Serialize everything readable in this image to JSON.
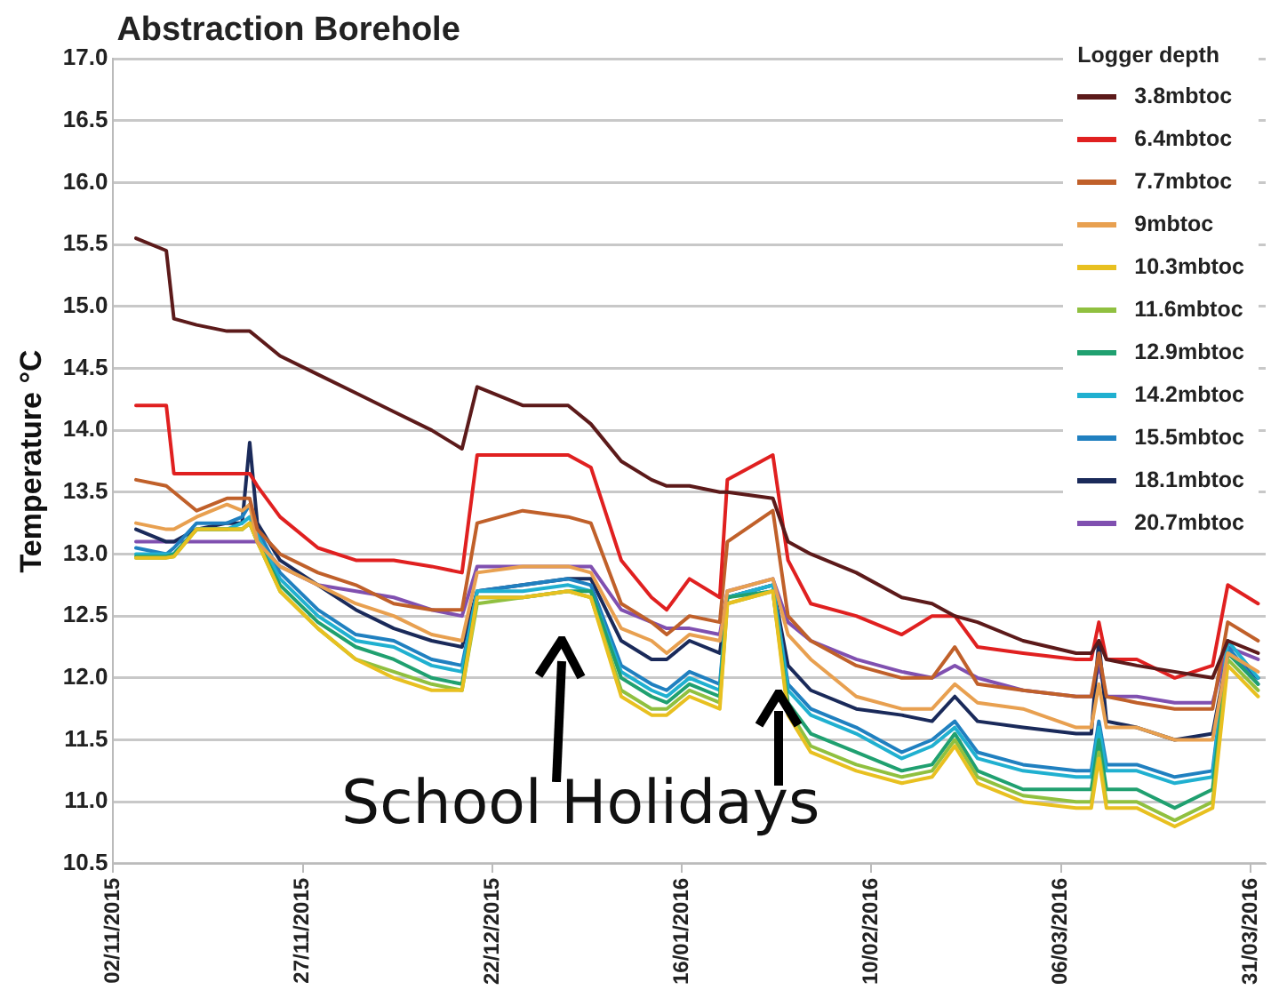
{
  "chart_data": {
    "type": "line",
    "title": "Abstraction Borehole",
    "ylabel": "Temperature °C",
    "legend_title": "Logger depth",
    "legend": "top right",
    "grid": "y",
    "marker": "none",
    "line_style": "solid",
    "annotations": [
      "School Holidays"
    ],
    "xlim": [
      "2015-11-02",
      "2016-04-02"
    ],
    "xticks": [
      {
        "value": "2015-11-02",
        "label": "02/11/2015"
      },
      {
        "value": "2015-11-27",
        "label": "27/11/2015"
      },
      {
        "value": "2015-12-22",
        "label": "22/12/2015"
      },
      {
        "value": "2016-01-16",
        "label": "16/01/2016"
      },
      {
        "value": "2016-02-10",
        "label": "10/02/2016"
      },
      {
        "value": "2016-03-06",
        "label": "06/03/2016"
      },
      {
        "value": "2016-03-31",
        "label": "31/03/2016"
      }
    ],
    "ylim": [
      10.5,
      17.0
    ],
    "yticks": [
      {
        "value": 10.5,
        "label": "10.5"
      },
      {
        "value": 11,
        "label": "11.0"
      },
      {
        "value": 11.5,
        "label": "11.5"
      },
      {
        "value": 12,
        "label": "12.0"
      },
      {
        "value": 12.5,
        "label": "12.5"
      },
      {
        "value": 13,
        "label": "13.0"
      },
      {
        "value": 13.5,
        "label": "13.5"
      },
      {
        "value": 14,
        "label": "14.0"
      },
      {
        "value": 14.5,
        "label": "14.5"
      },
      {
        "value": 15,
        "label": "15.0"
      },
      {
        "value": 15.5,
        "label": "15.5"
      },
      {
        "value": 16,
        "label": "16.0"
      },
      {
        "value": 16.5,
        "label": "16.5"
      },
      {
        "value": 17,
        "label": "17.0"
      }
    ],
    "x": [
      "2015-11-05",
      "2015-11-09",
      "2015-11-10",
      "2015-11-13",
      "2015-11-17",
      "2015-11-19",
      "2015-11-20",
      "2015-11-21",
      "2015-11-24",
      "2015-11-29",
      "2015-12-04",
      "2015-12-09",
      "2015-12-14",
      "2015-12-18",
      "2015-12-20",
      "2015-12-26",
      "2016-01-01",
      "2016-01-04",
      "2016-01-08",
      "2016-01-12",
      "2016-01-14",
      "2016-01-17",
      "2016-01-21",
      "2016-01-22",
      "2016-01-28",
      "2016-01-30",
      "2016-02-02",
      "2016-02-08",
      "2016-02-14",
      "2016-02-18",
      "2016-02-21",
      "2016-02-24",
      "2016-03-01",
      "2016-03-08",
      "2016-03-10",
      "2016-03-11",
      "2016-03-12",
      "2016-03-16",
      "2016-03-21",
      "2016-03-26",
      "2016-03-28",
      "2016-04-01"
    ],
    "series": [
      {
        "name": "3.8mbtoc",
        "color": "#5c1a1a",
        "values": [
          15.55,
          15.45,
          14.9,
          14.85,
          14.8,
          14.8,
          14.8,
          14.75,
          14.6,
          14.45,
          14.3,
          14.15,
          14.0,
          13.85,
          14.35,
          14.2,
          14.2,
          14.05,
          13.75,
          13.6,
          13.55,
          13.55,
          13.5,
          13.5,
          13.45,
          13.1,
          13.0,
          12.85,
          12.65,
          12.6,
          12.5,
          12.45,
          12.3,
          12.2,
          12.2,
          12.3,
          12.15,
          12.1,
          12.05,
          12.0,
          12.3,
          12.2
        ]
      },
      {
        "name": "6.4mbtoc",
        "color": "#e02020",
        "values": [
          14.2,
          14.2,
          13.65,
          13.65,
          13.65,
          13.65,
          13.65,
          13.55,
          13.3,
          13.05,
          12.95,
          12.95,
          12.9,
          12.85,
          13.8,
          13.8,
          13.8,
          13.7,
          12.95,
          12.65,
          12.55,
          12.8,
          12.65,
          13.6,
          13.8,
          12.95,
          12.6,
          12.5,
          12.35,
          12.5,
          12.5,
          12.25,
          12.2,
          12.15,
          12.15,
          12.45,
          12.15,
          12.15,
          12.0,
          12.1,
          12.75,
          12.6
        ]
      },
      {
        "name": "7.7mbtoc",
        "color": "#c0602a",
        "values": [
          13.6,
          13.55,
          13.5,
          13.35,
          13.45,
          13.45,
          13.45,
          13.2,
          13.0,
          12.85,
          12.75,
          12.6,
          12.55,
          12.55,
          13.25,
          13.35,
          13.3,
          13.25,
          12.6,
          12.45,
          12.35,
          12.5,
          12.45,
          13.1,
          13.35,
          12.5,
          12.3,
          12.1,
          12.0,
          12.0,
          12.25,
          11.95,
          11.9,
          11.85,
          11.85,
          12.2,
          11.85,
          11.8,
          11.75,
          11.75,
          12.45,
          12.3
        ]
      },
      {
        "name": "9mbtoc",
        "color": "#e8a050",
        "values": [
          13.25,
          13.2,
          13.2,
          13.3,
          13.4,
          13.35,
          13.4,
          13.1,
          12.9,
          12.75,
          12.6,
          12.5,
          12.35,
          12.3,
          12.85,
          12.9,
          12.9,
          12.85,
          12.4,
          12.3,
          12.2,
          12.35,
          12.3,
          12.7,
          12.8,
          12.35,
          12.15,
          11.85,
          11.75,
          11.75,
          11.95,
          11.8,
          11.75,
          11.6,
          11.6,
          11.95,
          11.6,
          11.6,
          11.5,
          11.5,
          12.2,
          12.05
        ]
      },
      {
        "name": "10.3mbtoc",
        "color": "#e8c020",
        "values": [
          12.97,
          12.97,
          12.98,
          13.2,
          13.2,
          13.2,
          13.25,
          13.1,
          12.7,
          12.4,
          12.15,
          12.0,
          11.9,
          11.9,
          12.65,
          12.65,
          12.7,
          12.65,
          11.85,
          11.7,
          11.7,
          11.85,
          11.75,
          12.6,
          12.7,
          11.7,
          11.4,
          11.25,
          11.15,
          11.2,
          11.45,
          11.15,
          11.0,
          10.95,
          10.95,
          11.35,
          10.95,
          10.95,
          10.8,
          10.95,
          12.1,
          11.85
        ]
      },
      {
        "name": "11.6mbtoc",
        "color": "#90c040",
        "values": [
          12.97,
          12.97,
          12.98,
          13.2,
          13.2,
          13.2,
          13.25,
          13.1,
          12.7,
          12.4,
          12.15,
          12.05,
          11.95,
          11.9,
          12.6,
          12.65,
          12.7,
          12.65,
          11.9,
          11.75,
          11.75,
          11.9,
          11.8,
          12.6,
          12.7,
          11.75,
          11.45,
          11.3,
          11.2,
          11.25,
          11.5,
          11.2,
          11.05,
          11.0,
          11.0,
          11.4,
          11.0,
          11.0,
          10.85,
          11.0,
          12.15,
          11.9
        ]
      },
      {
        "name": "12.9mbtoc",
        "color": "#20a070",
        "values": [
          12.98,
          12.98,
          13.0,
          13.2,
          13.2,
          13.2,
          13.25,
          13.1,
          12.75,
          12.45,
          12.25,
          12.15,
          12.0,
          11.95,
          12.65,
          12.65,
          12.7,
          12.7,
          12.0,
          11.85,
          11.8,
          11.95,
          11.85,
          12.65,
          12.7,
          11.8,
          11.55,
          11.4,
          11.25,
          11.3,
          11.55,
          11.25,
          11.1,
          11.1,
          11.1,
          11.5,
          11.1,
          11.1,
          10.95,
          11.1,
          12.2,
          11.95
        ]
      },
      {
        "name": "14.2mbtoc",
        "color": "#20b0d0",
        "values": [
          13.0,
          13.0,
          13.0,
          13.2,
          13.2,
          13.25,
          13.3,
          13.15,
          12.8,
          12.5,
          12.3,
          12.25,
          12.1,
          12.05,
          12.7,
          12.7,
          12.75,
          12.7,
          12.05,
          11.9,
          11.85,
          12.0,
          11.9,
          12.65,
          12.75,
          11.9,
          11.7,
          11.55,
          11.35,
          11.45,
          11.6,
          11.35,
          11.25,
          11.2,
          11.2,
          11.6,
          11.25,
          11.25,
          11.15,
          11.2,
          12.3,
          12.0
        ]
      },
      {
        "name": "15.5mbtoc",
        "color": "#2080c0",
        "values": [
          13.05,
          13.0,
          13.05,
          13.25,
          13.25,
          13.3,
          13.4,
          13.2,
          12.85,
          12.55,
          12.35,
          12.3,
          12.15,
          12.1,
          12.7,
          12.75,
          12.8,
          12.75,
          12.1,
          11.95,
          11.9,
          12.05,
          11.95,
          12.65,
          12.75,
          11.95,
          11.75,
          11.6,
          11.4,
          11.5,
          11.65,
          11.4,
          11.3,
          11.25,
          11.25,
          11.65,
          11.3,
          11.3,
          11.2,
          11.25,
          12.25,
          11.95
        ]
      },
      {
        "name": "18.1mbtoc",
        "color": "#1a2a5a",
        "values": [
          13.2,
          13.1,
          13.1,
          13.2,
          13.25,
          13.25,
          13.9,
          13.25,
          12.95,
          12.75,
          12.55,
          12.4,
          12.3,
          12.25,
          12.7,
          12.75,
          12.8,
          12.8,
          12.3,
          12.15,
          12.15,
          12.3,
          12.2,
          12.65,
          12.75,
          12.1,
          11.9,
          11.75,
          11.7,
          11.65,
          11.85,
          11.65,
          11.6,
          11.55,
          11.55,
          12.3,
          11.65,
          11.6,
          11.5,
          11.55,
          12.2,
          12.0
        ]
      },
      {
        "name": "20.7mbtoc",
        "color": "#8050b0",
        "values": [
          13.1,
          13.1,
          13.1,
          13.1,
          13.1,
          13.1,
          13.1,
          13.1,
          12.9,
          12.75,
          12.7,
          12.65,
          12.55,
          12.5,
          12.9,
          12.9,
          12.9,
          12.9,
          12.55,
          12.45,
          12.4,
          12.4,
          12.35,
          12.7,
          12.8,
          12.45,
          12.3,
          12.15,
          12.05,
          12.0,
          12.1,
          12.0,
          11.9,
          11.85,
          11.85,
          12.1,
          11.85,
          11.85,
          11.8,
          11.8,
          12.25,
          12.15
        ]
      }
    ]
  }
}
